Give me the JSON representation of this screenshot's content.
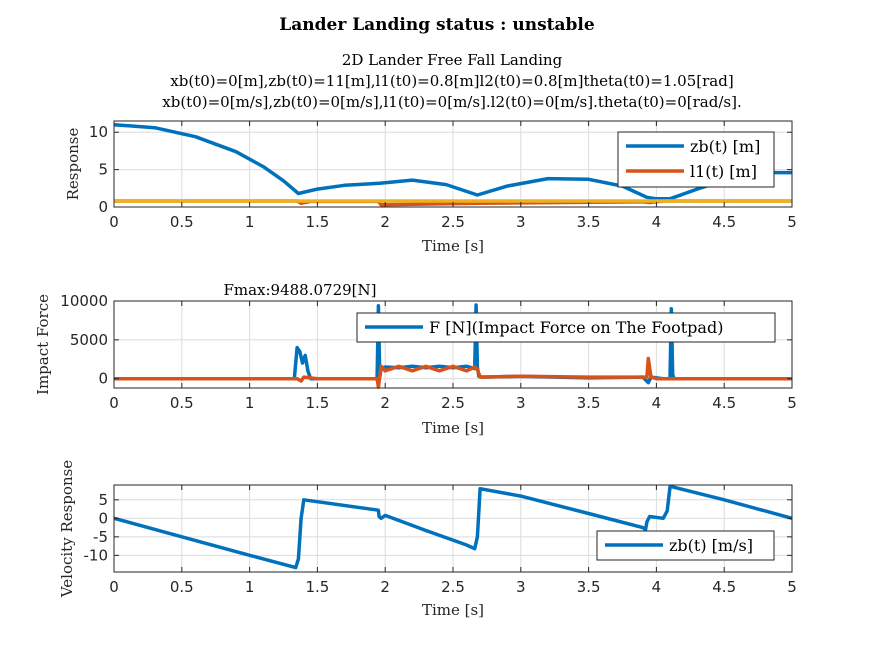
{
  "figure_title": "Lander Landing status : unstable",
  "chart_data": [
    {
      "type": "line",
      "title_lines": [
        "2D Lander Free Fall Landing",
        "xb(t0)=0[m],zb(t0)=11[m],l1(t0)=0.8[m]l2(t0)=0.8[m]theta(t0)=1.05[rad]",
        "xb(t0)=0[m/s],zb(t0)=0[m/s],l1(t0)=0[m/s].l2(t0)=0[m/s].theta(t0)=0[rad/s]."
      ],
      "xlabel": "Time [s]",
      "ylabel": "Response",
      "xlim": [
        0,
        5
      ],
      "ylim": [
        0,
        11.5
      ],
      "xticks": [
        "0",
        "0.5",
        "1",
        "1.5",
        "2",
        "2.5",
        "3",
        "3.5",
        "4",
        "4.5",
        "5"
      ],
      "yticks": [
        "0",
        "5",
        "10"
      ],
      "ytick_values": [
        0,
        5,
        10
      ],
      "grid": true,
      "legend_position": "top-right",
      "series": [
        {
          "name": "zb(t) [m]",
          "color": "#0072BD",
          "x": [
            0,
            0.3,
            0.6,
            0.9,
            1.1,
            1.25,
            1.36,
            1.5,
            1.7,
            1.9,
            1.97,
            2.2,
            2.45,
            2.68,
            2.9,
            3.2,
            3.5,
            3.75,
            3.93,
            4.0,
            4.1,
            4.3,
            4.6,
            4.8,
            5.0
          ],
          "values": [
            11,
            10.6,
            9.4,
            7.4,
            5.4,
            3.5,
            1.8,
            2.4,
            2.9,
            3.1,
            3.2,
            3.6,
            3.0,
            1.6,
            2.8,
            3.8,
            3.7,
            2.8,
            1.3,
            1.1,
            1.1,
            2.4,
            4.1,
            4.6,
            4.6
          ]
        },
        {
          "name": "l1(t) [m]",
          "color": "#D95319",
          "x": [
            0,
            1.35,
            1.38,
            1.45,
            1.95,
            1.97,
            2.7,
            3.9,
            3.95,
            4.05,
            5.0
          ],
          "values": [
            0.8,
            0.8,
            0.5,
            0.75,
            0.75,
            0.3,
            0.5,
            0.7,
            0.6,
            0.8,
            0.8
          ]
        },
        {
          "name": "",
          "color": "#EDB120",
          "x": [
            0,
            5.0
          ],
          "values": [
            0.8,
            0.8
          ]
        }
      ]
    },
    {
      "type": "line",
      "title": "Fmax:9488.0729[N]",
      "xlabel": "Time [s]",
      "ylabel": "Impact Force",
      "xlim": [
        0,
        5
      ],
      "ylim": [
        -1200,
        10000
      ],
      "xticks": [
        "0",
        "0.5",
        "1",
        "1.5",
        "2",
        "2.5",
        "3",
        "3.5",
        "4",
        "4.5",
        "5"
      ],
      "yticks": [
        "0",
        "5000",
        "10000"
      ],
      "ytick_values": [
        0,
        5000,
        10000
      ],
      "grid": true,
      "legend_position": "top-right",
      "series": [
        {
          "name": "F [N](Impact Force on The Footpad)",
          "color": "#0072BD",
          "x": [
            0,
            1.33,
            1.35,
            1.37,
            1.39,
            1.41,
            1.43,
            1.45,
            1.5,
            1.94,
            1.95,
            1.96,
            1.97,
            2.0,
            2.1,
            2.2,
            2.3,
            2.4,
            2.5,
            2.6,
            2.66,
            2.67,
            2.68,
            2.69,
            2.72,
            3.0,
            3.5,
            3.9,
            3.94,
            3.96,
            4.05,
            4.1,
            4.11,
            4.12,
            4.13,
            4.15,
            5.0
          ],
          "values": [
            0,
            0,
            4000,
            3500,
            2000,
            3000,
            1000,
            0,
            0,
            0,
            9400,
            200,
            1300,
            1500,
            1400,
            1600,
            1400,
            1600,
            1400,
            1600,
            1300,
            9488,
            1500,
            300,
            200,
            300,
            100,
            200,
            -500,
            200,
            0,
            0,
            9000,
            500,
            0,
            0,
            0
          ]
        },
        {
          "name": "",
          "color": "#D95319",
          "x": [
            0,
            1.35,
            1.38,
            1.4,
            1.5,
            1.94,
            1.95,
            1.97,
            2.0,
            2.1,
            2.2,
            2.3,
            2.4,
            2.5,
            2.6,
            2.66,
            2.68,
            2.7,
            3.0,
            3.5,
            3.93,
            3.94,
            3.96,
            4.0,
            5.0
          ],
          "values": [
            0,
            0,
            -300,
            200,
            0,
            0,
            -1100,
            1600,
            1000,
            1600,
            1000,
            1600,
            1000,
            1600,
            1000,
            1500,
            1200,
            200,
            300,
            200,
            200,
            2600,
            200,
            0,
            0
          ]
        }
      ]
    },
    {
      "type": "line",
      "xlabel": "Time [s]",
      "ylabel": "Velocity Response",
      "xlim": [
        0,
        5
      ],
      "ylim": [
        -14.5,
        9
      ],
      "xticks": [
        "0",
        "0.5",
        "1",
        "1.5",
        "2",
        "2.5",
        "3",
        "3.5",
        "4",
        "4.5",
        "5"
      ],
      "yticks": [
        "-10",
        "-5",
        "0",
        "5"
      ],
      "ytick_values": [
        -10,
        -5,
        0,
        5
      ],
      "grid": true,
      "legend_position": "bottom-right",
      "series": [
        {
          "name": "zb(t) [m/s]",
          "color": "#0072BD",
          "x": [
            0,
            0.5,
            1.0,
            1.34,
            1.36,
            1.38,
            1.4,
            1.95,
            1.955,
            1.97,
            2.0,
            2.3,
            2.6,
            2.66,
            2.68,
            2.7,
            3.0,
            3.5,
            3.9,
            3.92,
            3.93,
            3.95,
            4.05,
            4.08,
            4.1,
            4.12,
            4.5,
            5.0
          ],
          "values": [
            0,
            -5,
            -10,
            -13.3,
            -11,
            0,
            5,
            2.2,
            0.5,
            0,
            0.8,
            -3.3,
            -7.2,
            -8.2,
            -5,
            8,
            6,
            1.3,
            -2.5,
            -3,
            -1,
            0.5,
            0,
            2,
            8.5,
            8.5,
            5,
            0
          ]
        }
      ]
    }
  ]
}
